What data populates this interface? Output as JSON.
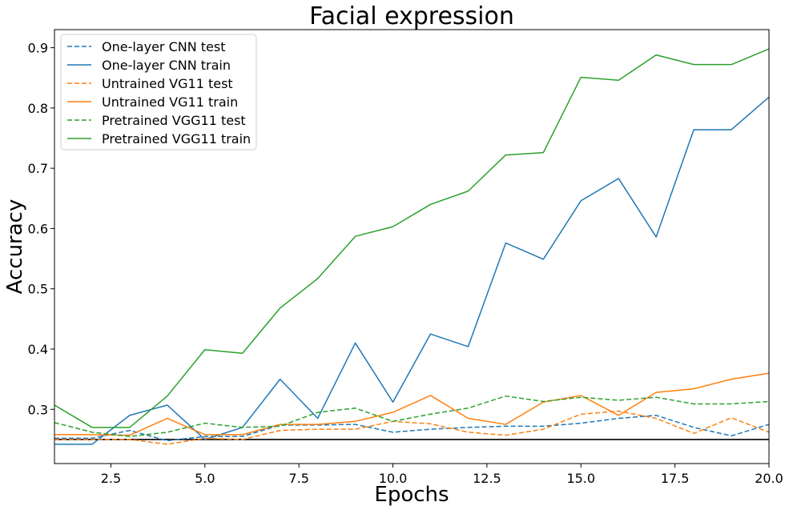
{
  "chart_data": {
    "type": "line",
    "title": "Facial expression",
    "xlabel": "Epochs",
    "ylabel": "Accuracy",
    "xlim": [
      1,
      20
    ],
    "ylim": [
      0.21,
      0.93
    ],
    "xticks": [
      2.5,
      5.0,
      7.5,
      10.0,
      12.5,
      15.0,
      17.5,
      20.0
    ],
    "xtick_labels": [
      "2.5",
      "5.0",
      "7.5",
      "10.0",
      "12.5",
      "15.0",
      "17.5",
      "20.0"
    ],
    "yticks": [
      0.3,
      0.4,
      0.5,
      0.6,
      0.7,
      0.8,
      0.9
    ],
    "ytick_labels": [
      "0.3",
      "0.4",
      "0.5",
      "0.6",
      "0.7",
      "0.8",
      "0.9"
    ],
    "grid": false,
    "legend_position": "top-left",
    "reference_line": {
      "y": 0.25,
      "color": "#000000"
    },
    "x": [
      1,
      2,
      3,
      4,
      5,
      6,
      7,
      8,
      9,
      10,
      11,
      12,
      13,
      14,
      15,
      16,
      17,
      18,
      19,
      20
    ],
    "series": [
      {
        "name": "One-layer CNN test",
        "color": "#1f77b4",
        "dash": true,
        "values": [
          0.252,
          0.252,
          0.265,
          0.248,
          0.255,
          0.255,
          0.274,
          0.274,
          0.275,
          0.262,
          0.267,
          0.27,
          0.272,
          0.272,
          0.277,
          0.285,
          0.29,
          0.27,
          0.256,
          0.275
        ]
      },
      {
        "name": "One-layer CNN train",
        "color": "#1f77b4",
        "dash": false,
        "values": [
          0.242,
          0.242,
          0.29,
          0.307,
          0.25,
          0.27,
          0.35,
          0.285,
          0.41,
          0.312,
          0.425,
          0.404,
          0.576,
          0.549,
          0.646,
          0.683,
          0.586,
          0.764,
          0.764,
          0.818
        ]
      },
      {
        "name": "Untrained VG11 test",
        "color": "#ff7f0e",
        "dash": true,
        "values": [
          0.25,
          0.25,
          0.25,
          0.242,
          0.252,
          0.25,
          0.265,
          0.267,
          0.267,
          0.28,
          0.276,
          0.262,
          0.257,
          0.267,
          0.292,
          0.297,
          0.285,
          0.26,
          0.286,
          0.262
        ]
      },
      {
        "name": "Untrained VG11 train",
        "color": "#ff7f0e",
        "dash": false,
        "values": [
          0.258,
          0.258,
          0.257,
          0.285,
          0.258,
          0.258,
          0.275,
          0.275,
          0.28,
          0.295,
          0.323,
          0.285,
          0.275,
          0.312,
          0.323,
          0.29,
          0.328,
          0.334,
          0.35,
          0.36
        ]
      },
      {
        "name": "Pretrained VGG11 test",
        "color": "#2ca02c",
        "dash": true,
        "values": [
          0.278,
          0.262,
          0.255,
          0.262,
          0.277,
          0.27,
          0.272,
          0.295,
          0.302,
          0.28,
          0.292,
          0.302,
          0.322,
          0.313,
          0.32,
          0.315,
          0.32,
          0.309,
          0.309,
          0.313
        ]
      },
      {
        "name": "Pretrained VGG11 train",
        "color": "#2ca02c",
        "dash": false,
        "values": [
          0.307,
          0.27,
          0.27,
          0.322,
          0.399,
          0.393,
          0.468,
          0.517,
          0.587,
          0.603,
          0.64,
          0.662,
          0.722,
          0.726,
          0.851,
          0.846,
          0.888,
          0.872,
          0.872,
          0.898
        ]
      }
    ]
  }
}
